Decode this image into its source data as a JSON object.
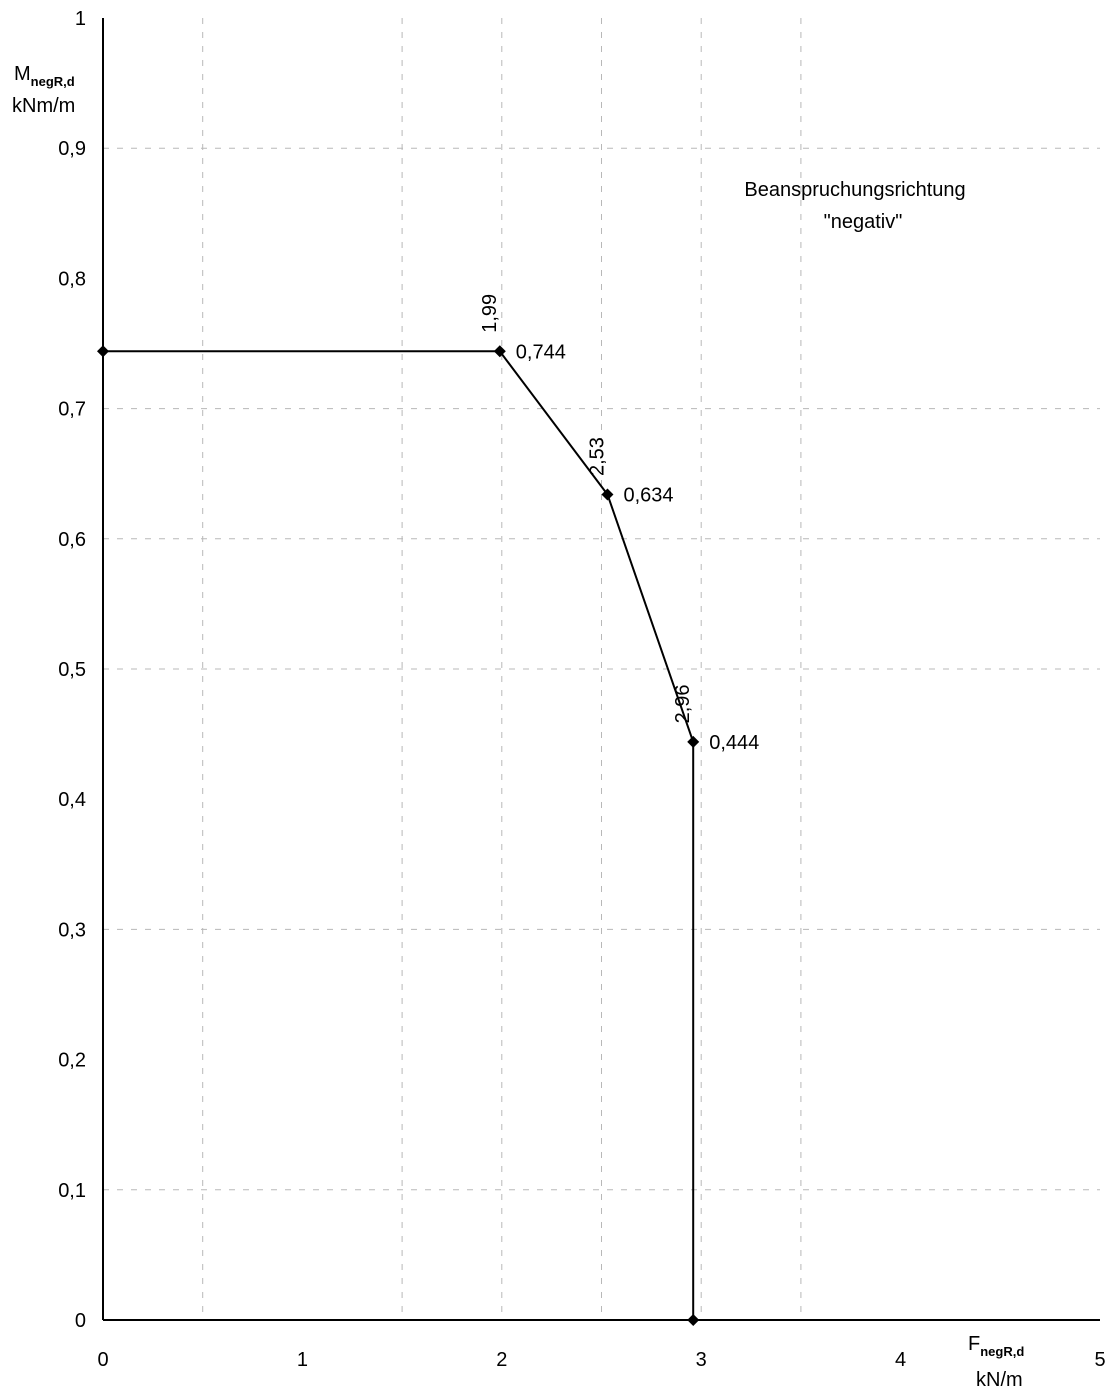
{
  "chart_data": {
    "type": "line",
    "x": [
      0,
      1.99,
      2.53,
      2.96,
      2.96
    ],
    "y": [
      0.744,
      0.744,
      0.634,
      0.444,
      0
    ],
    "xlim": [
      0,
      5
    ],
    "ylim": [
      0,
      1
    ],
    "x_ticks": [
      "0",
      "1",
      "2",
      "3",
      "4",
      "5"
    ],
    "y_ticks": [
      "0",
      "0,1",
      "0,2",
      "0,3",
      "0,4",
      "0,5",
      "0,6",
      "0,7",
      "0,8",
      "0,9",
      "1"
    ],
    "x_tick_values": [
      0,
      1,
      2,
      3,
      4,
      5
    ],
    "y_tick_values": [
      0,
      0.1,
      0.2,
      0.3,
      0.4,
      0.5,
      0.6,
      0.7,
      0.8,
      0.9,
      1
    ],
    "x_gridlines": [
      0.5,
      1.5,
      2,
      2.5,
      3,
      3.5
    ],
    "y_gridlines": [
      0.1,
      0.3,
      0.5,
      0.6,
      0.7,
      0.9
    ],
    "grid": "dashed",
    "ylabel": {
      "main": "M",
      "sub": "negR,d",
      "unit": "kNm/m"
    },
    "xlabel": {
      "main": "F",
      "sub": "negR,d",
      "unit": "kN/m"
    },
    "annotation": {
      "line1": "Beanspruchungsrichtung",
      "line2": "\"negativ\""
    },
    "point_labels": [
      {
        "x": 1.99,
        "y": 0.744,
        "x_label": "1,99",
        "y_label": "0,744"
      },
      {
        "x": 2.53,
        "y": 0.634,
        "x_label": "2,53",
        "y_label": "0,634"
      },
      {
        "x": 2.96,
        "y": 0.444,
        "x_label": "2,96",
        "y_label": "0,444"
      }
    ],
    "colors": {
      "line": "#000000",
      "grid": "#b8b8b8"
    }
  }
}
